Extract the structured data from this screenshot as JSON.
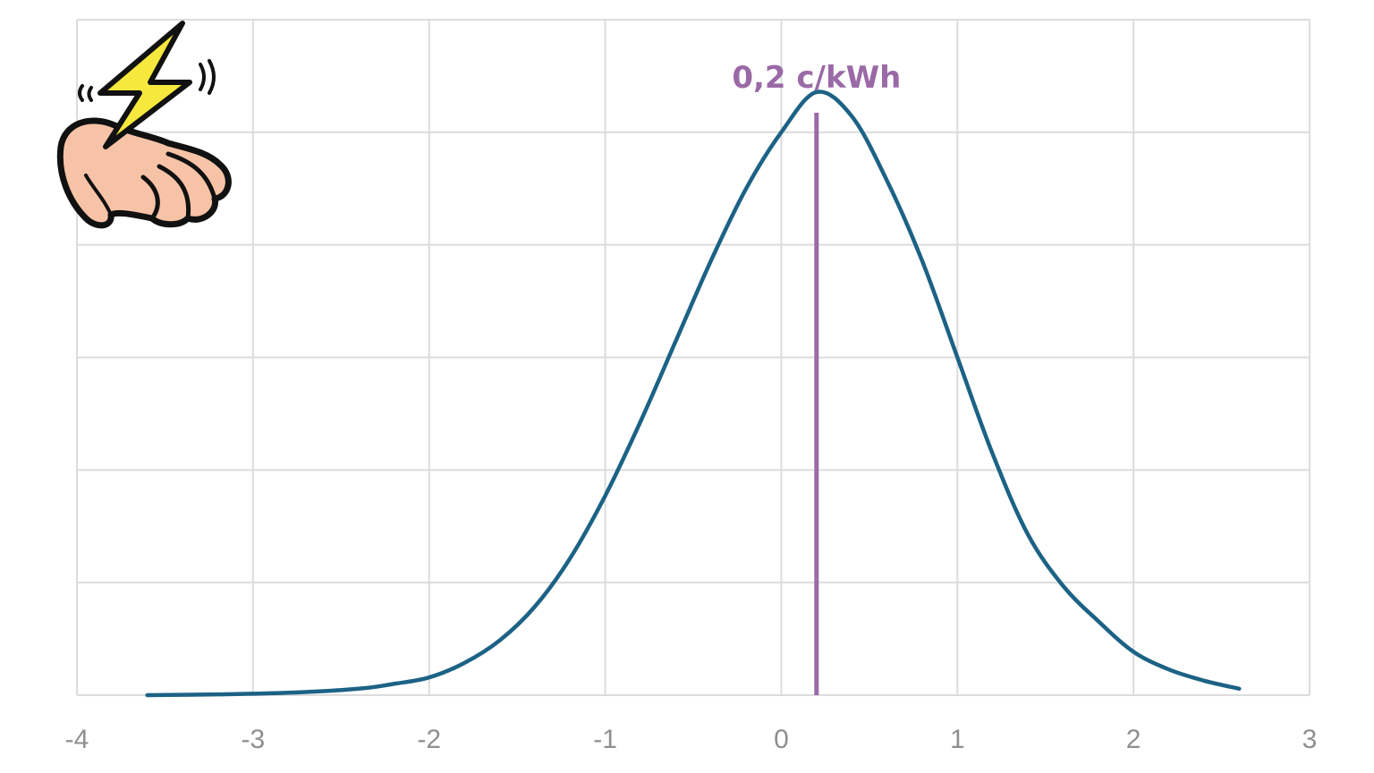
{
  "chart_data": {
    "type": "line",
    "title": "",
    "xlabel": "",
    "ylabel": "",
    "xlim": [
      -4,
      3
    ],
    "ylim": [
      0,
      0.42
    ],
    "x_ticks": [
      "-4",
      "-3",
      "-2",
      "-1",
      "0",
      "1",
      "2",
      "3"
    ],
    "y_gridlines": 6,
    "grid": true,
    "legend": "none",
    "series": [
      {
        "color": "#1c6285",
        "x": [
          -3.6,
          -3.2,
          -2.8,
          -2.4,
          -2.2,
          -2.0,
          -1.8,
          -1.6,
          -1.4,
          -1.2,
          -1.0,
          -0.8,
          -0.6,
          -0.4,
          -0.2,
          0.0,
          0.2,
          0.4,
          0.6,
          0.8,
          1.0,
          1.2,
          1.4,
          1.6,
          1.8,
          2.0,
          2.2,
          2.4,
          2.6
        ],
        "y": [
          0.0,
          0.0005,
          0.0015,
          0.004,
          0.007,
          0.011,
          0.02,
          0.034,
          0.055,
          0.085,
          0.124,
          0.17,
          0.22,
          0.27,
          0.315,
          0.35,
          0.375,
          0.36,
          0.32,
          0.27,
          0.21,
          0.15,
          0.1,
          0.068,
          0.046,
          0.027,
          0.016,
          0.009,
          0.004
        ]
      }
    ],
    "annotations": [
      {
        "label": "0,2 c/kWh",
        "x": 0.2,
        "color": "#9a6aa6"
      }
    ]
  },
  "icons": {
    "corner_illustration": "hand-lightning-icon"
  }
}
